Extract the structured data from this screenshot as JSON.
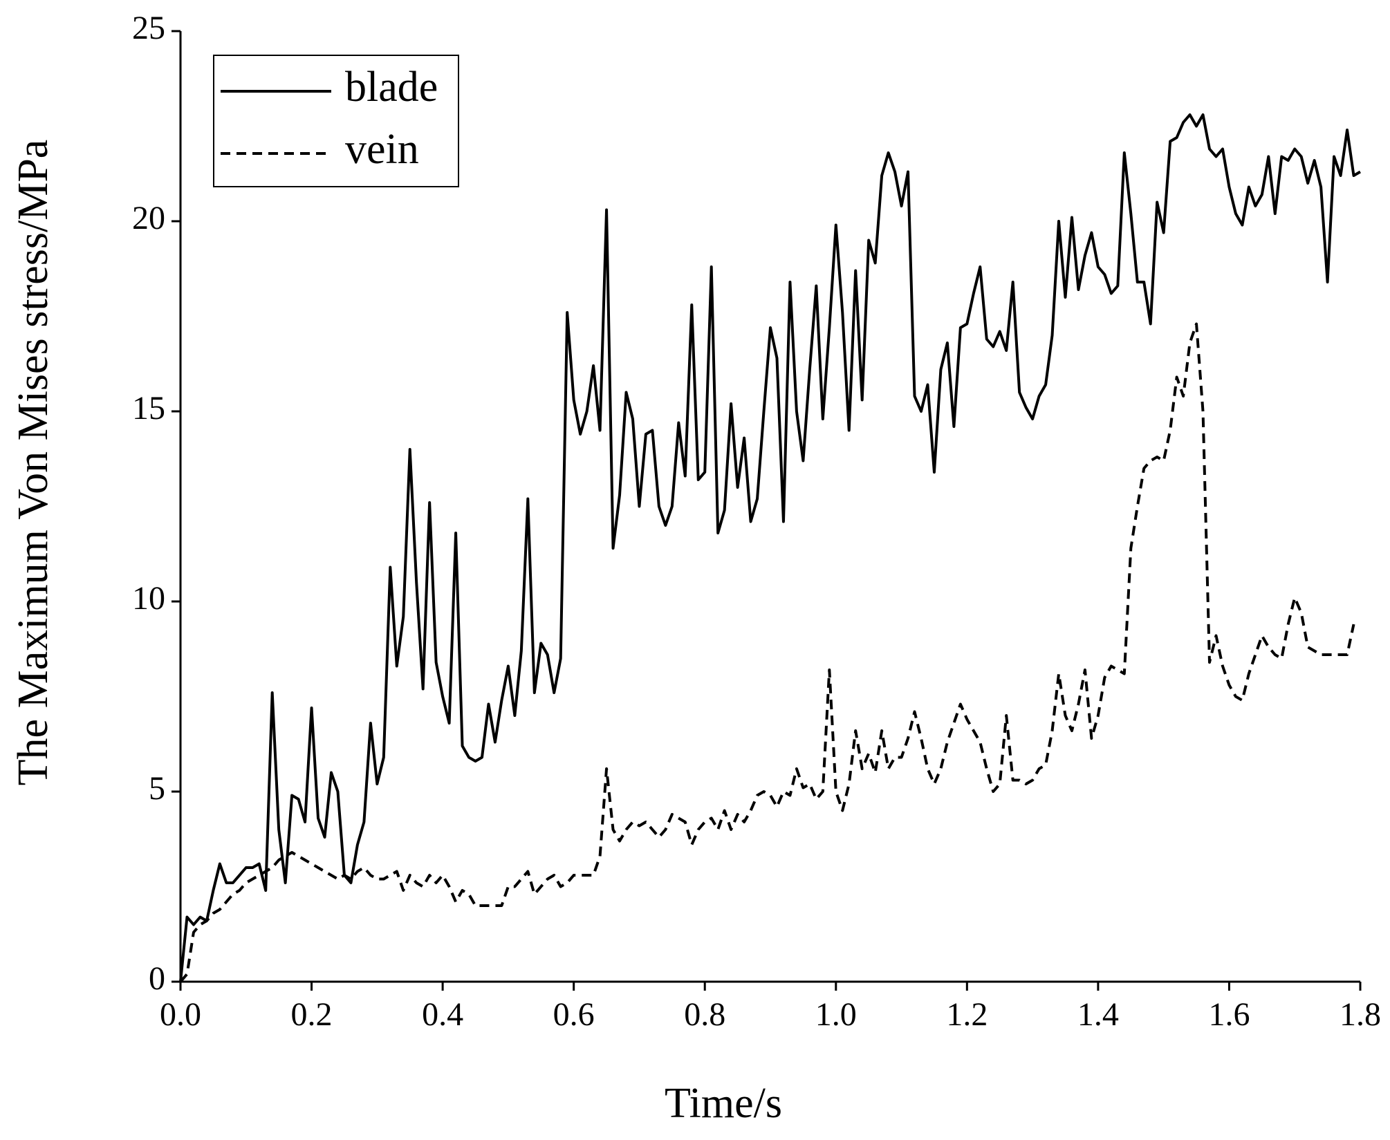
{
  "chart_data": {
    "type": "line",
    "x_label": "Time/s",
    "y_label": "The Maximum Von Mises stress/MPa",
    "xlim": [
      0,
      1.8
    ],
    "ylim": [
      0,
      25
    ],
    "xticks": [
      {
        "value": 0,
        "label": "0.0"
      },
      0.2,
      0.4,
      0.6,
      0.8,
      {
        "value": 1,
        "label": "1.0"
      },
      1.2,
      1.4,
      1.6,
      1.8
    ],
    "yticks": [
      0,
      5,
      10,
      15,
      20,
      25
    ],
    "legend": "upper left",
    "x": [
      0,
      0.01,
      0.02,
      0.03,
      0.04,
      0.05,
      0.06,
      0.07,
      0.08,
      0.09,
      0.1,
      0.11,
      0.12,
      0.13,
      0.14,
      0.15,
      0.16,
      0.17,
      0.18,
      0.19,
      0.2,
      0.21,
      0.22,
      0.23,
      0.24,
      0.25,
      0.26,
      0.27,
      0.28,
      0.29,
      0.3,
      0.31,
      0.32,
      0.33,
      0.34,
      0.35,
      0.36,
      0.37,
      0.38,
      0.39,
      0.4,
      0.41,
      0.42,
      0.43,
      0.44,
      0.45,
      0.46,
      0.47,
      0.48,
      0.49,
      0.5,
      0.51,
      0.52,
      0.53,
      0.54,
      0.55,
      0.56,
      0.57,
      0.58,
      0.59,
      0.6,
      0.61,
      0.62,
      0.63,
      0.64,
      0.65,
      0.66,
      0.67,
      0.68,
      0.69,
      0.7,
      0.71,
      0.72,
      0.73,
      0.74,
      0.75,
      0.76,
      0.77,
      0.78,
      0.79,
      0.8,
      0.81,
      0.82,
      0.83,
      0.84,
      0.85,
      0.86,
      0.87,
      0.88,
      0.89,
      0.9,
      0.91,
      0.92,
      0.93,
      0.94,
      0.95,
      0.96,
      0.97,
      0.98,
      0.99,
      1,
      1.01,
      1.02,
      1.03,
      1.04,
      1.05,
      1.06,
      1.07,
      1.08,
      1.09,
      1.1,
      1.11,
      1.12,
      1.13,
      1.14,
      1.15,
      1.16,
      1.17,
      1.18,
      1.19,
      1.2,
      1.21,
      1.22,
      1.23,
      1.24,
      1.25,
      1.26,
      1.27,
      1.28,
      1.29,
      1.3,
      1.31,
      1.32,
      1.33,
      1.34,
      1.35,
      1.36,
      1.37,
      1.38,
      1.39,
      1.4,
      1.41,
      1.42,
      1.43,
      1.44,
      1.45,
      1.46,
      1.47,
      1.48,
      1.49,
      1.5,
      1.51,
      1.52,
      1.53,
      1.54,
      1.55,
      1.56,
      1.57,
      1.58,
      1.59,
      1.6,
      1.61,
      1.62,
      1.63,
      1.64,
      1.65,
      1.66,
      1.67,
      1.68,
      1.69,
      1.7,
      1.71,
      1.72,
      1.73,
      1.74,
      1.75,
      1.76,
      1.77,
      1.78,
      1.79,
      1.8
    ],
    "series": [
      {
        "name": "blade",
        "color": "#000000",
        "line_style": "solid",
        "values": [
          0,
          1.7,
          1.5,
          1.7,
          1.6,
          2.4,
          3.1,
          2.6,
          2.6,
          2.8,
          3.0,
          3.0,
          3.1,
          2.4,
          7.6,
          4.0,
          2.6,
          4.9,
          4.8,
          4.2,
          7.2,
          4.3,
          3.8,
          5.5,
          5.0,
          2.8,
          2.6,
          3.6,
          4.2,
          6.8,
          5.2,
          5.9,
          10.9,
          8.3,
          9.6,
          14.0,
          10.5,
          7.7,
          12.6,
          8.4,
          7.5,
          6.8,
          11.8,
          6.2,
          5.9,
          5.8,
          5.9,
          7.3,
          6.3,
          7.4,
          8.3,
          7.0,
          8.7,
          12.7,
          7.6,
          8.9,
          8.6,
          7.6,
          8.5,
          17.6,
          15.3,
          14.4,
          15.0,
          16.2,
          14.5,
          20.3,
          11.4,
          12.8,
          15.5,
          14.8,
          12.5,
          14.4,
          14.5,
          12.5,
          12.0,
          12.5,
          14.7,
          13.3,
          17.8,
          13.2,
          13.4,
          18.8,
          11.8,
          12.4,
          15.2,
          13.0,
          14.3,
          12.1,
          12.7,
          15.0,
          17.2,
          16.4,
          12.1,
          18.4,
          15.0,
          13.7,
          16.1,
          18.3,
          14.8,
          17.2,
          19.9,
          17.6,
          14.5,
          18.7,
          15.3,
          19.5,
          18.9,
          21.2,
          21.8,
          21.3,
          20.4,
          21.3,
          15.4,
          15.0,
          15.7,
          13.4,
          16.1,
          16.8,
          14.6,
          17.2,
          17.3,
          18.1,
          18.8,
          16.9,
          16.7,
          17.1,
          16.6,
          18.4,
          15.5,
          15.1,
          14.8,
          15.4,
          15.7,
          17.0,
          20.0,
          18.0,
          20.1,
          18.2,
          19.1,
          19.7,
          18.8,
          18.6,
          18.1,
          18.3,
          21.8,
          20.2,
          18.4,
          18.4,
          17.3,
          20.5,
          19.7,
          22.1,
          22.2,
          22.6,
          22.8,
          22.5,
          22.8,
          21.9,
          21.7,
          21.9,
          20.9,
          20.2,
          19.9,
          20.9,
          20.4,
          20.7,
          21.7,
          20.2,
          21.7,
          21.6,
          21.9,
          21.7,
          21.0,
          21.6,
          20.9,
          18.4,
          21.7,
          21.2,
          22.4,
          21.2,
          21.3
        ]
      },
      {
        "name": "vein",
        "color": "#000000",
        "line_style": "dashed",
        "values": [
          0,
          0.2,
          1.3,
          1.5,
          1.6,
          1.8,
          1.9,
          2.1,
          2.3,
          2.4,
          2.6,
          2.7,
          2.8,
          2.9,
          3.0,
          3.2,
          3.3,
          3.4,
          3.3,
          3.2,
          3.1,
          3.0,
          2.9,
          2.8,
          2.7,
          2.8,
          2.7,
          2.9,
          3.0,
          2.8,
          2.7,
          2.7,
          2.8,
          2.9,
          2.4,
          2.8,
          2.6,
          2.5,
          2.8,
          2.6,
          2.8,
          2.5,
          2.1,
          2.4,
          2.3,
          2.0,
          2.0,
          2.0,
          2.0,
          2.0,
          2.5,
          2.5,
          2.7,
          2.9,
          2.3,
          2.5,
          2.7,
          2.8,
          2.5,
          2.6,
          2.8,
          2.8,
          2.8,
          2.8,
          3.3,
          5.6,
          4.0,
          3.7,
          4.0,
          4.2,
          4.1,
          4.2,
          4.0,
          3.8,
          4.0,
          4.4,
          4.3,
          4.2,
          3.6,
          4.0,
          4.2,
          4.3,
          4.0,
          4.5,
          4.0,
          4.4,
          4.2,
          4.5,
          4.9,
          5.0,
          4.9,
          4.6,
          5.0,
          4.9,
          5.6,
          5.1,
          5.2,
          4.8,
          5.0,
          8.2,
          5.0,
          4.5,
          5.2,
          6.6,
          5.6,
          6.0,
          5.5,
          6.6,
          5.6,
          5.9,
          5.9,
          6.4,
          7.1,
          6.4,
          5.6,
          5.2,
          5.6,
          6.3,
          6.8,
          7.3,
          6.9,
          6.6,
          6.3,
          5.6,
          5.0,
          5.2,
          7.0,
          5.3,
          5.3,
          5.2,
          5.3,
          5.6,
          5.7,
          6.6,
          8.1,
          7.0,
          6.6,
          7.3,
          8.2,
          6.4,
          7.0,
          8.0,
          8.3,
          8.2,
          8.1,
          11.4,
          12.5,
          13.5,
          13.7,
          13.8,
          13.7,
          14.5,
          15.9,
          15.4,
          16.8,
          17.3,
          15.0,
          8.4,
          9.1,
          8.3,
          7.8,
          7.5,
          7.4,
          8.1,
          8.6,
          9.1,
          8.8,
          8.6,
          8.5,
          9.4,
          10.1,
          9.7,
          8.8,
          8.7,
          8.6,
          8.6,
          8.6,
          8.6,
          8.6,
          9.4,
          null
        ]
      }
    ]
  }
}
